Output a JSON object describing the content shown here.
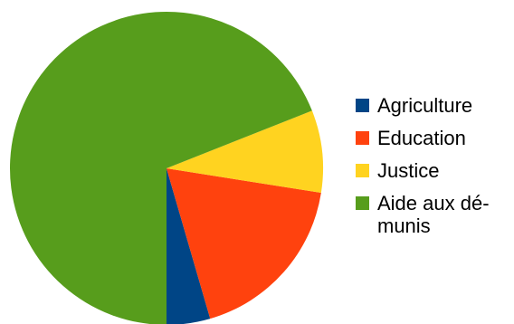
{
  "chart_data": {
    "type": "pie",
    "title": "",
    "slices": [
      {
        "label": "Agriculture",
        "value": 4.5,
        "color": "#004586"
      },
      {
        "label": "Education",
        "value": 18.0,
        "color": "#ff420e"
      },
      {
        "label": "Justice",
        "value": 8.5,
        "color": "#ffd320"
      },
      {
        "label": "Aide aux dé-munis",
        "label_lines": [
          "Aide aux dé-",
          "munis"
        ],
        "value": 69.0,
        "color": "#579d1c"
      }
    ],
    "legend_position": "right"
  }
}
